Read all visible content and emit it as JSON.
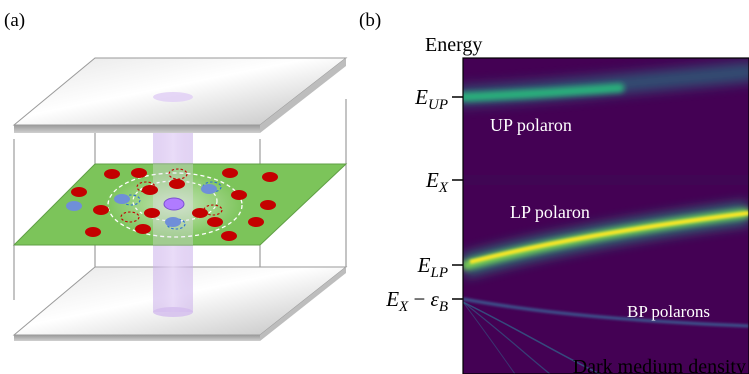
{
  "panel_a": {
    "label": "(a)"
  },
  "panel_b": {
    "label": "(b)",
    "ylabel": "Energy",
    "xlabel": "Dark medium density",
    "ticks": {
      "e_up": {
        "main": "E",
        "sub": "UP"
      },
      "e_x": {
        "main": "E",
        "sub": "X"
      },
      "e_lp": {
        "main": "E",
        "sub": "LP"
      },
      "e_x_minus_eb": {
        "main": "E",
        "sub": "X",
        "op": " − ",
        "eps": "ε",
        "eps_sub": "B"
      }
    },
    "annotations": {
      "up": "UP polaron",
      "lp": "LP polaron",
      "bp": "BP polarons"
    }
  },
  "colors": {
    "plot_bg": "#440154",
    "branch_glow": "#21a585",
    "branch_core": "#fde725",
    "up_branch": "#2cb47c",
    "sheet_green": "#7cc45a",
    "impurity_red": "#c40000",
    "impurity_blue": "#6f8fd8",
    "center_purple": "#b07bff",
    "light_column": "#d9c2f0",
    "mirror_gray": "#b8b8b8"
  }
}
